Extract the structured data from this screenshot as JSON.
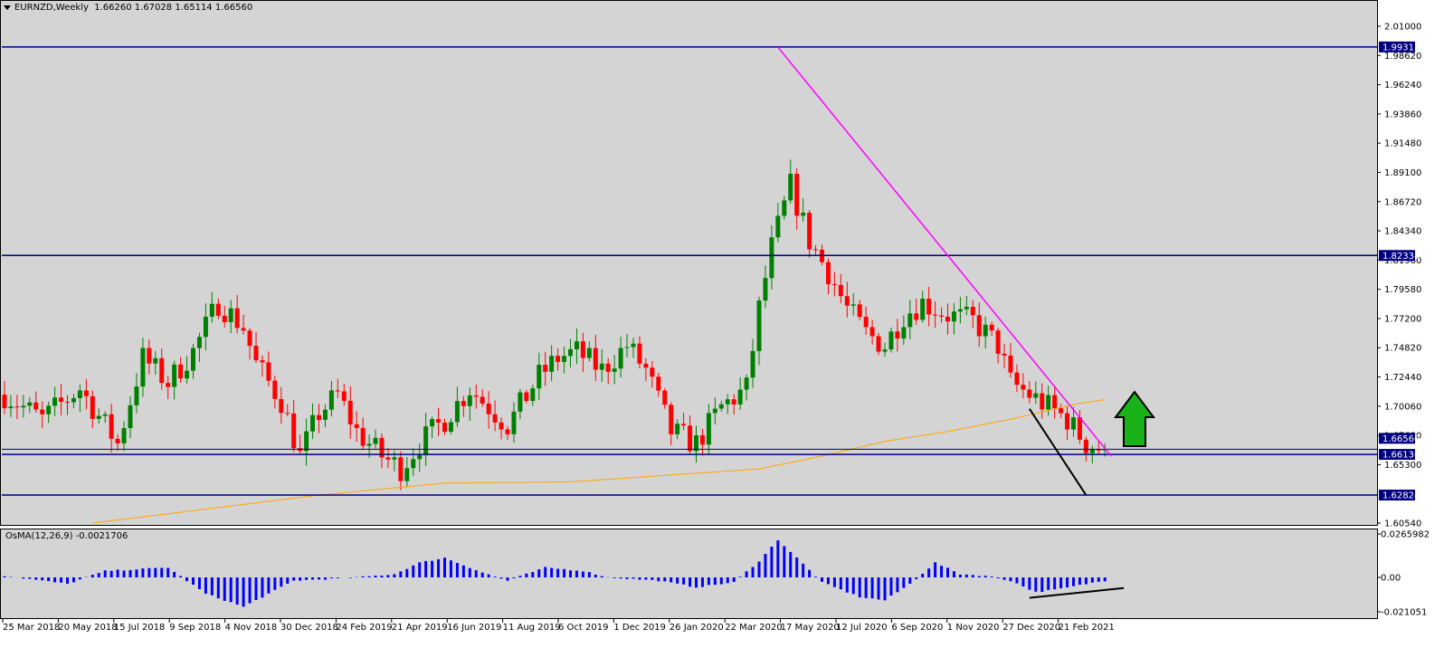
{
  "header": {
    "symbol": "EURNZD,Weekly",
    "ohlc": "1.66260 1.67028 1.65114 1.66560"
  },
  "indicator": {
    "label": "OsMA(12,26,9) -0.0021706"
  },
  "colors": {
    "background": "#d4d4d4",
    "bull": "#008000",
    "bear": "#ff0000",
    "level_line": "#000080",
    "trendline": "#ff00ff",
    "ma": "#ffa500",
    "osma": "#0000ff",
    "arrow": "#19b219"
  },
  "chart_data": [
    {
      "type": "candlestick",
      "title": "EURNZD,Weekly",
      "ylim": [
        1.6054,
        2.01
      ],
      "y_ticks": [
        "2.01000",
        "1.98620",
        "1.96240",
        "1.93860",
        "1.91480",
        "1.89100",
        "1.86720",
        "1.84340",
        "1.81960",
        "1.79580",
        "1.77200",
        "1.74820",
        "1.72440",
        "1.70060",
        "1.67680",
        "1.65300",
        "1.60540"
      ],
      "x_labels": [
        "25 Mar 2018",
        "20 May 2018",
        "15 Jul 2018",
        "9 Sep 2018",
        "4 Nov 2018",
        "30 Dec 2018",
        "24 Feb 2019",
        "21 Apr 2019",
        "16 Jun 2019",
        "11 Aug 2019",
        "6 Oct 2019",
        "1 Dec 2019",
        "26 Jan 2020",
        "22 Mar 2020",
        "17 May 2020",
        "12 Jul 2020",
        "6 Sep 2020",
        "1 Nov 2020",
        "27 Dec 2020",
        "21 Feb 2021"
      ],
      "close_path": [
        [
          0,
          1.71
        ],
        [
          6,
          1.69
        ],
        [
          12,
          1.715
        ],
        [
          18,
          1.67
        ],
        [
          22,
          1.74
        ],
        [
          26,
          1.72
        ],
        [
          30,
          1.745
        ],
        [
          34,
          1.785
        ],
        [
          38,
          1.765
        ],
        [
          40,
          1.735
        ],
        [
          44,
          1.705
        ],
        [
          47,
          1.66
        ],
        [
          50,
          1.695
        ],
        [
          53,
          1.71
        ],
        [
          56,
          1.68
        ],
        [
          60,
          1.66
        ],
        [
          63,
          1.65
        ],
        [
          66,
          1.67
        ],
        [
          70,
          1.69
        ],
        [
          74,
          1.715
        ],
        [
          77,
          1.7
        ],
        [
          80,
          1.685
        ],
        [
          85,
          1.725
        ],
        [
          88,
          1.74
        ],
        [
          91,
          1.745
        ],
        [
          95,
          1.73
        ],
        [
          99,
          1.75
        ],
        [
          102,
          1.73
        ],
        [
          106,
          1.68
        ],
        [
          110,
          1.67
        ],
        [
          114,
          1.7
        ],
        [
          118,
          1.715
        ],
        [
          120,
          1.78
        ],
        [
          122,
          1.83
        ],
        [
          125,
          1.88
        ],
        [
          128,
          1.835
        ],
        [
          131,
          1.81
        ],
        [
          134,
          1.78
        ],
        [
          137,
          1.76
        ],
        [
          140,
          1.75
        ],
        [
          143,
          1.775
        ],
        [
          146,
          1.785
        ],
        [
          150,
          1.775
        ],
        [
          154,
          1.77
        ],
        [
          158,
          1.75
        ],
        [
          160,
          1.72
        ],
        [
          163,
          1.71
        ],
        [
          166,
          1.7
        ],
        [
          169,
          1.69
        ],
        [
          172,
          1.67
        ],
        [
          175,
          1.665
        ]
      ],
      "price_levels": [
        1.99315,
        1.82334,
        1.66136,
        1.62824
      ],
      "current_price": 1.6656,
      "current_price_label": "1.66560",
      "highlighted_labels": [
        "1.99315",
        "1.82334",
        "1.66136",
        "1.62824"
      ],
      "ma_path": [
        [
          14,
          1.6054
        ],
        [
          50,
          1.6282
        ],
        [
          70,
          1.638
        ],
        [
          90,
          1.639
        ],
        [
          110,
          1.646
        ],
        [
          120,
          1.6495
        ],
        [
          130,
          1.66
        ],
        [
          140,
          1.672
        ],
        [
          150,
          1.68
        ],
        [
          160,
          1.69
        ],
        [
          170,
          1.702
        ],
        [
          175,
          1.706
        ]
      ],
      "trendline_magenta": [
        [
          123,
          1.993
        ],
        [
          176,
          1.66
        ]
      ],
      "trendline_black": [
        [
          163,
          1.6985
        ],
        [
          172,
          1.6282
        ]
      ],
      "annotation_arrow": "up"
    },
    {
      "type": "bar",
      "title": "OsMA(12,26,9) -0.0021706",
      "ylim": [
        -0.021051,
        0.026598
      ],
      "y_ticks": [
        "0.0265982",
        "0.00",
        "-0.021051"
      ],
      "value_path": [
        [
          0,
          0.001
        ],
        [
          10,
          -0.004
        ],
        [
          16,
          0.004
        ],
        [
          26,
          0.006
        ],
        [
          32,
          -0.01
        ],
        [
          38,
          -0.018
        ],
        [
          46,
          -0.002
        ],
        [
          56,
          0.0
        ],
        [
          62,
          0.002
        ],
        [
          66,
          0.009
        ],
        [
          70,
          0.012
        ],
        [
          76,
          0.003
        ],
        [
          80,
          -0.002
        ],
        [
          86,
          0.006
        ],
        [
          92,
          0.004
        ],
        [
          96,
          0.0
        ],
        [
          104,
          -0.002
        ],
        [
          110,
          -0.006
        ],
        [
          116,
          -0.003
        ],
        [
          120,
          0.01
        ],
        [
          123,
          0.023
        ],
        [
          126,
          0.012
        ],
        [
          130,
          -0.003
        ],
        [
          136,
          -0.012
        ],
        [
          140,
          -0.014
        ],
        [
          144,
          -0.004
        ],
        [
          148,
          0.009
        ],
        [
          152,
          0.002
        ],
        [
          156,
          0.001
        ],
        [
          160,
          -0.002
        ],
        [
          164,
          -0.009
        ],
        [
          168,
          -0.007
        ],
        [
          172,
          -0.004
        ],
        [
          175,
          -0.002
        ]
      ],
      "divergence_line": [
        [
          163,
          -0.0125
        ],
        [
          178,
          -0.0065
        ]
      ]
    }
  ]
}
